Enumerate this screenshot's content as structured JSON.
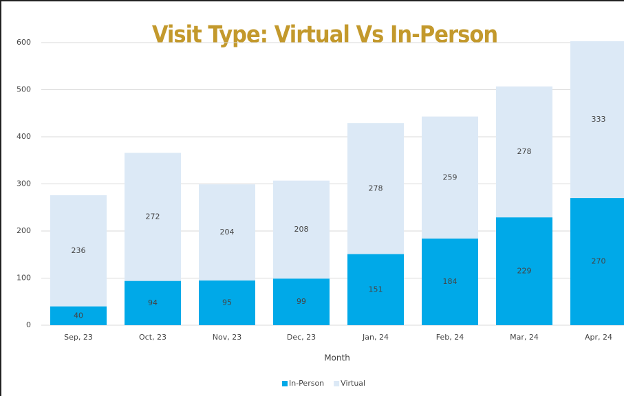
{
  "chart_data": {
    "type": "stacked_bar",
    "title": "Visit Type: Virtual Vs In-Person",
    "x_label": "Month",
    "categories": [
      "Sep, 23",
      "Oct, 23",
      "Nov, 23",
      "Dec, 23",
      "Jan, 24",
      "Feb, 24",
      "Mar, 24",
      "Apr, 24"
    ],
    "series": [
      {
        "name": "In-Person",
        "color": "#00a9e8",
        "values": [
          40,
          94,
          95,
          99,
          151,
          184,
          229,
          270
        ]
      },
      {
        "name": "Virtual",
        "color": "#dce9f6",
        "values": [
          236,
          272,
          204,
          208,
          278,
          259,
          278,
          333
        ]
      }
    ],
    "ylim": [
      0,
      600
    ],
    "yticks": [
      0,
      100,
      200,
      300,
      400,
      500,
      600
    ],
    "grid": true,
    "legend": "bottom"
  }
}
